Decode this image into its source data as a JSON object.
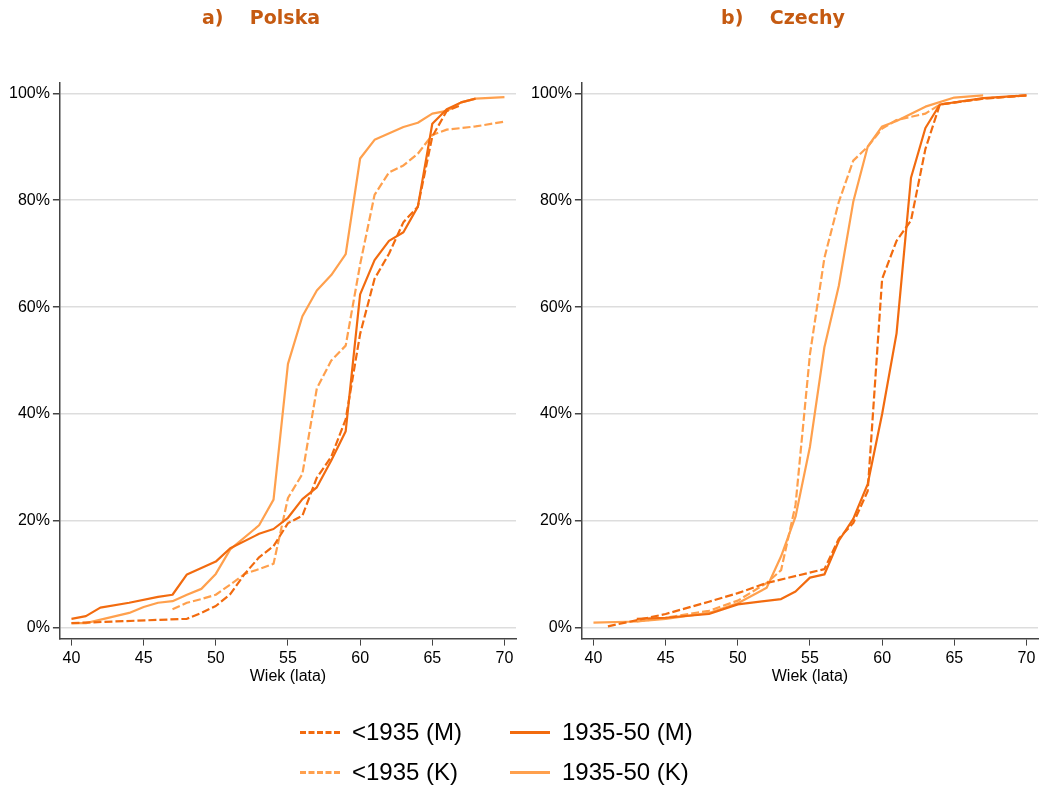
{
  "chart_data": [
    {
      "type": "line",
      "title": "a)    Polska",
      "xlabel": "Wiek (lata)",
      "xlim": [
        39.2,
        70.8
      ],
      "xticks": [
        40,
        45,
        50,
        55,
        60,
        65,
        70
      ],
      "ylim": [
        -2,
        102
      ],
      "yticks": [
        {
          "value": 0,
          "label": "0%"
        },
        {
          "value": 20,
          "label": "20%"
        },
        {
          "value": 40,
          "label": "40%"
        },
        {
          "value": 60,
          "label": "60%"
        },
        {
          "value": 80,
          "label": "80%"
        },
        {
          "value": 100,
          "label": "100%"
        }
      ],
      "grid": "y",
      "legend": "bottom",
      "marker": "none",
      "series": [
        {
          "name": "<1935 (M)",
          "color": "#f26b0f",
          "line_style": "dashed",
          "x": [
            40,
            48,
            49,
            50,
            51,
            52,
            53,
            54,
            55,
            56,
            57,
            58,
            59,
            60,
            61,
            62,
            63,
            64,
            65,
            66,
            67
          ],
          "values": [
            0.9,
            1.7,
            2.8,
            4.1,
            6.3,
            10.1,
            13.2,
            15.3,
            19.6,
            21,
            28.1,
            32,
            39,
            55,
            65.3,
            70,
            75.9,
            78.8,
            91.9,
            96.7,
            97.8
          ]
        },
        {
          "name": "1935-50 (M)",
          "color": "#f26b0f",
          "line_style": "solid",
          "x": [
            40,
            41,
            42,
            44,
            46,
            47,
            48,
            50,
            51,
            53,
            54,
            55,
            56,
            57,
            58,
            59,
            60,
            61,
            62,
            63,
            64,
            65,
            66,
            67,
            68
          ],
          "values": [
            1.7,
            2.2,
            3.8,
            4.7,
            5.8,
            6.2,
            10,
            12.4,
            14.9,
            17.6,
            18.5,
            20.6,
            24.1,
            26.3,
            31.3,
            36.8,
            62.4,
            68.8,
            72.4,
            74,
            78.8,
            94.3,
            97,
            98.3,
            99
          ]
        },
        {
          "name": "<1935 (K)",
          "color": "#ffa04d",
          "line_style": "dashed",
          "x": [
            47,
            48,
            49,
            50,
            51,
            52,
            53,
            54,
            55,
            56,
            57,
            58,
            59,
            60,
            61,
            62,
            63,
            64,
            65,
            66,
            68,
            70
          ],
          "values": [
            3.5,
            4.7,
            5.4,
            6.2,
            8.1,
            10.1,
            11,
            12,
            24.3,
            28.8,
            44.8,
            50,
            52.8,
            68,
            81,
            85.2,
            86.5,
            88.7,
            92.2,
            93.2,
            93.8,
            94.7
          ]
        },
        {
          "name": "1935-50 (K)",
          "color": "#ffa04d",
          "line_style": "solid",
          "x": [
            40,
            41,
            44,
            45,
            46,
            47,
            48,
            49,
            50,
            51,
            53,
            54,
            55,
            56,
            57,
            58,
            59,
            60,
            61,
            63,
            64,
            65,
            66,
            67,
            68,
            70
          ],
          "values": [
            0.9,
            0.9,
            2.8,
            3.9,
            4.7,
            5,
            6.2,
            7.3,
            10.1,
            14.7,
            19.2,
            24,
            49.4,
            58.3,
            63.1,
            66,
            69.9,
            87.8,
            91.3,
            93.7,
            94.5,
            96.2,
            96.7,
            98.3,
            99,
            99.3
          ]
        }
      ]
    },
    {
      "type": "line",
      "title": "b)    Czechy",
      "xlabel": "Wiek (lata)",
      "xlim": [
        39.2,
        70.8
      ],
      "xticks": [
        40,
        45,
        50,
        55,
        60,
        65,
        70
      ],
      "ylim": [
        -2,
        102
      ],
      "yticks": [
        {
          "value": 0,
          "label": "0%"
        },
        {
          "value": 20,
          "label": "20%"
        },
        {
          "value": 40,
          "label": "40%"
        },
        {
          "value": 60,
          "label": "60%"
        },
        {
          "value": 80,
          "label": "80%"
        },
        {
          "value": 100,
          "label": "100%"
        }
      ],
      "grid": "y",
      "marker": "none",
      "series": [
        {
          "color": "#f26b0f",
          "line_style": "dashed",
          "x": [
            41,
            45,
            48,
            50,
            52,
            56,
            57,
            58,
            59,
            60,
            61,
            62,
            63,
            64,
            67,
            70
          ],
          "values": [
            0.3,
            2.6,
            4.9,
            6.5,
            8.4,
            11,
            16.7,
            19.6,
            25.6,
            65.3,
            72.4,
            76.2,
            89.6,
            97.9,
            99,
            99.6
          ]
        },
        {
          "color": "#f26b0f",
          "line_style": "solid",
          "x": [
            43,
            45,
            48,
            50,
            53,
            54,
            55,
            56,
            57,
            58,
            59,
            60,
            61,
            62,
            63,
            64,
            67,
            70
          ],
          "values": [
            1.7,
            1.9,
            2.6,
            4.4,
            5.4,
            6.8,
            9.4,
            10,
            16.3,
            20.4,
            26.9,
            40,
            55.1,
            84.2,
            93.5,
            97.9,
            99.1,
            99.6
          ]
        },
        {
          "color": "#ffa04d",
          "line_style": "dashed",
          "x": [
            43,
            45,
            48,
            50,
            52,
            53,
            54,
            55,
            56,
            57,
            58,
            59,
            60,
            61,
            63,
            64,
            67,
            70
          ],
          "values": [
            1.2,
            1.9,
            3.2,
            5.1,
            8.4,
            10.8,
            23,
            51.2,
            69.2,
            79.7,
            87.4,
            90,
            93.4,
            95,
            96.2,
            97.9,
            99,
            99.6
          ]
        },
        {
          "color": "#ffa04d",
          "line_style": "solid",
          "x": [
            40,
            43,
            45,
            48,
            50,
            52,
            53,
            54,
            55,
            56,
            57,
            58,
            59,
            60,
            61,
            63,
            65,
            67
          ],
          "values": [
            1,
            1.2,
            1.7,
            2.8,
            4.6,
            7.5,
            13.4,
            20.8,
            33.9,
            52.5,
            64,
            79.7,
            90,
            93.8,
            94.8,
            97.5,
            99.2,
            99.6
          ]
        }
      ]
    }
  ]
}
